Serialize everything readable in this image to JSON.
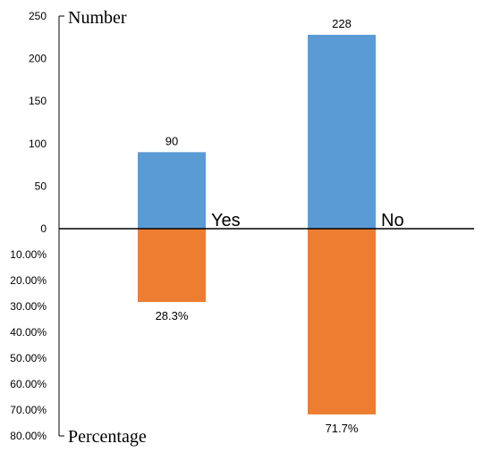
{
  "chart_data": {
    "type": "bar",
    "categories": [
      "Yes",
      "No"
    ],
    "series": [
      {
        "values": [
          90,
          228
        ],
        "color": "#5b9bd5",
        "labels": [
          "90",
          "228"
        ]
      },
      {
        "values": [
          28.3,
          71.7
        ],
        "color": "#ed7d31",
        "labels": [
          "28.3%",
          "71.7%"
        ]
      }
    ],
    "upper_axis": {
      "title": "Number",
      "ticks": [
        "0",
        "50",
        "100",
        "150",
        "200",
        "250"
      ],
      "range": [
        0,
        250
      ]
    },
    "lower_axis": {
      "title": "Percentage",
      "ticks": [
        "10.00%",
        "20.00%",
        "30.00%",
        "40.00%",
        "50.00%",
        "60.00%",
        "70.00%",
        "80.00%"
      ],
      "range": [
        0,
        80
      ]
    },
    "grid": false,
    "legend": "none"
  }
}
